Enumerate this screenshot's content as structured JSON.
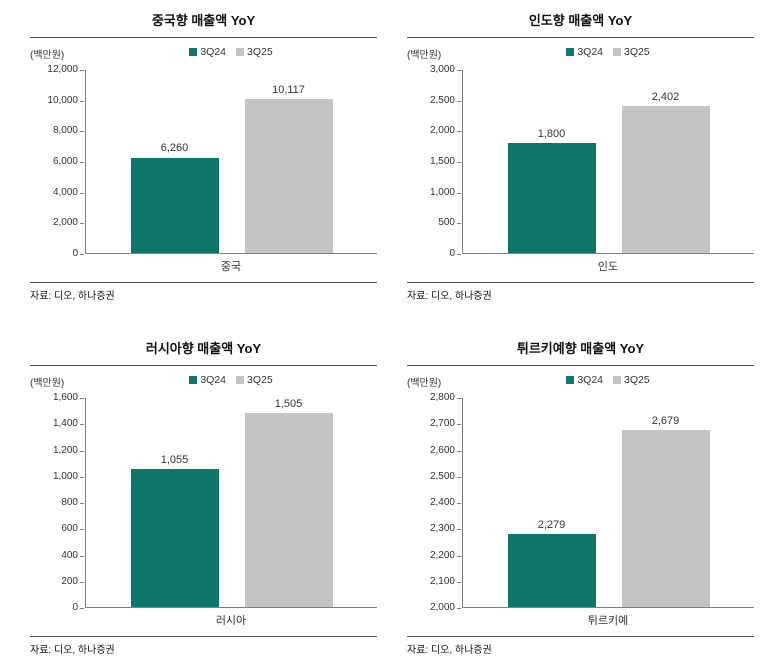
{
  "colors": {
    "series1": "#0e7568",
    "series2": "#c4c4c4",
    "axis": "#808080"
  },
  "chart_data": [
    {
      "type": "bar",
      "title": "중국향 매출액 YoY",
      "unit": "(백만원)",
      "categories": [
        "중국"
      ],
      "series": [
        {
          "name": "3Q24",
          "values": [
            6260
          ],
          "value_labels": [
            "6,260"
          ]
        },
        {
          "name": "3Q25",
          "values": [
            10117
          ],
          "value_labels": [
            "10,117"
          ]
        }
      ],
      "ylim": [
        0,
        12000
      ],
      "yticks": [
        0,
        2000,
        4000,
        6000,
        8000,
        10000,
        12000
      ],
      "ytick_labels": [
        "0",
        "2,000",
        "4,000",
        "6,000",
        "8,000",
        "10,000",
        "12,000"
      ],
      "legend_position": "top-center",
      "grid": false,
      "source": "자료: 디오, 하나증권"
    },
    {
      "type": "bar",
      "title": "인도향 매출액 YoY",
      "unit": "(백만원)",
      "categories": [
        "인도"
      ],
      "series": [
        {
          "name": "3Q24",
          "values": [
            1800
          ],
          "value_labels": [
            "1,800"
          ]
        },
        {
          "name": "3Q25",
          "values": [
            2402
          ],
          "value_labels": [
            "2,402"
          ]
        }
      ],
      "ylim": [
        0,
        3000
      ],
      "yticks": [
        0,
        500,
        1000,
        1500,
        2000,
        2500,
        3000
      ],
      "ytick_labels": [
        "0",
        "500",
        "1,000",
        "1,500",
        "2,000",
        "2,500",
        "3,000"
      ],
      "legend_position": "top-center",
      "grid": false,
      "source": "자료: 디오, 하나증권"
    },
    {
      "type": "bar",
      "title": "러시아향 매출액 YoY",
      "unit": "(백만원)",
      "categories": [
        "러시아"
      ],
      "series": [
        {
          "name": "3Q24",
          "values": [
            1055
          ],
          "value_labels": [
            "1,055"
          ]
        },
        {
          "name": "3Q25",
          "values": [
            1505
          ],
          "value_labels": [
            "1,505"
          ]
        }
      ],
      "ylim": [
        0,
        1600
      ],
      "yticks": [
        0,
        200,
        400,
        600,
        800,
        1000,
        1200,
        1400,
        1600
      ],
      "ytick_labels": [
        "0",
        "200",
        "400",
        "600",
        "800",
        "1,000",
        "1,200",
        "1,400",
        "1,600"
      ],
      "legend_position": "top-center",
      "grid": false,
      "source": "자료: 디오, 하나증권"
    },
    {
      "type": "bar",
      "title": "튀르키예향 매출액 YoY",
      "unit": "(백만원)",
      "categories": [
        "튀르키예"
      ],
      "series": [
        {
          "name": "3Q24",
          "values": [
            2279
          ],
          "value_labels": [
            "2,279"
          ]
        },
        {
          "name": "3Q25",
          "values": [
            2679
          ],
          "value_labels": [
            "2,679"
          ]
        }
      ],
      "ylim": [
        2000,
        2800
      ],
      "yticks": [
        2000,
        2100,
        2200,
        2300,
        2400,
        2500,
        2600,
        2700,
        2800
      ],
      "ytick_labels": [
        "2,000",
        "2,100",
        "2,200",
        "2,300",
        "2,400",
        "2,500",
        "2,600",
        "2,700",
        "2,800"
      ],
      "legend_position": "top-center",
      "grid": false,
      "source": "자료: 디오, 하나증권"
    }
  ]
}
